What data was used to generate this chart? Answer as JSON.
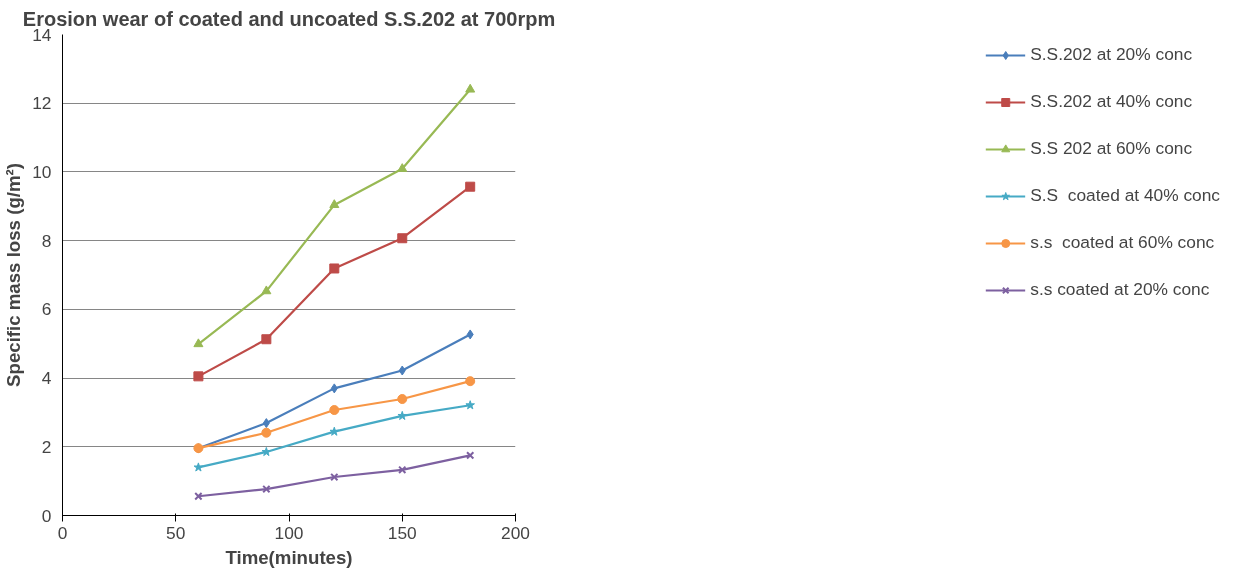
{
  "chart_data": {
    "type": "line",
    "title": "Erosion wear of coated and uncoated S.S.202 at 700rpm",
    "xlabel": "Time(minutes)",
    "ylabel": "Specific mass loss (g/m²)",
    "x": [
      60,
      90,
      120,
      150,
      180
    ],
    "xlim": [
      0,
      200
    ],
    "xticks": [
      0,
      50,
      100,
      150,
      200
    ],
    "ylim": [
      0,
      14
    ],
    "yticks": [
      0,
      2,
      4,
      6,
      8,
      10,
      12,
      14
    ],
    "grid": "y",
    "legend": "right",
    "series": [
      {
        "name": "S.S.202 at 20% conc",
        "color": "#4a7ebb",
        "marker": "diamond",
        "values": [
          1.96,
          2.69,
          3.7,
          4.22,
          5.27
        ]
      },
      {
        "name": "S.S.202 at 40% conc",
        "color": "#be4b48",
        "marker": "square",
        "values": [
          4.05,
          5.13,
          7.19,
          8.07,
          9.57
        ]
      },
      {
        "name": "S.S 202 at 60% conc",
        "color": "#98b954",
        "marker": "triangle",
        "values": [
          4.99,
          6.53,
          9.04,
          10.09,
          12.4
        ]
      },
      {
        "name": "S.S  coated at 40% conc",
        "color": "#46aac5",
        "marker": "star",
        "values": [
          1.4,
          1.85,
          2.44,
          2.9,
          3.21
        ]
      },
      {
        "name": "s.s  coated at 60% conc",
        "color": "#f79646",
        "marker": "circle",
        "values": [
          1.96,
          2.41,
          3.07,
          3.39,
          3.91
        ]
      },
      {
        "name": "s.s coated at 20% conc",
        "color": "#7d60a0",
        "marker": "cross",
        "values": [
          0.56,
          0.77,
          1.12,
          1.33,
          1.75
        ]
      }
    ]
  }
}
